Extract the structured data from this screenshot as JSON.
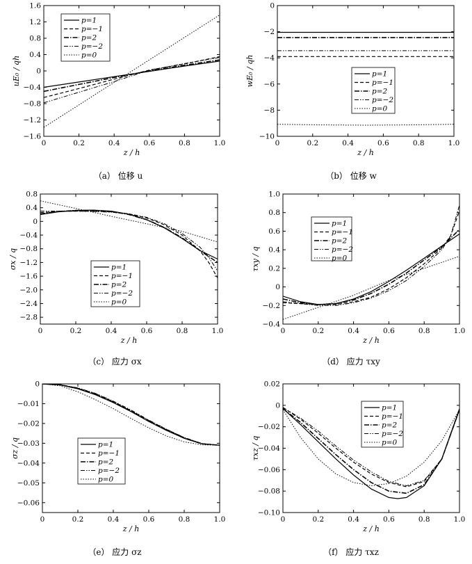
{
  "line_styles": {
    "p=1": {
      "dash": "",
      "width": 1.2
    },
    "p=-1": {
      "dash": "5,3",
      "width": 1.2
    },
    "p=2": {
      "dash": "7,2,1.5,2",
      "width": 1.6
    },
    "p=-2": {
      "dash": "6,2,1.5,2,1.5,2",
      "width": 1.0
    },
    "p=0": {
      "dash": "1.5,2",
      "width": 1.0
    }
  },
  "chart_data": [
    {
      "id": "a",
      "type": "line",
      "caption": "（a） 位移 u",
      "xlabel": "z / h",
      "ylabel": "uE₀ / qh",
      "xlim": [
        0,
        1.0
      ],
      "ylim": [
        -1.6,
        1.6
      ],
      "xticks": [
        "0",
        "0.2",
        "0.4",
        "0.6",
        "0.8",
        "1.0"
      ],
      "yticks": [
        "1.6",
        "1.2",
        "0.8",
        "0.4",
        "0",
        "-0.4",
        "-0.8",
        "-1.2",
        "-1.6"
      ],
      "legend_position": "top-left",
      "legend": [
        "p=1",
        "p=−1",
        "p=2",
        "p=−2",
        "p=0"
      ],
      "series": [
        {
          "name": "p=1",
          "x": [
            0,
            0.2,
            0.4,
            0.6,
            0.8,
            1.0
          ],
          "y": [
            -0.4,
            -0.27,
            -0.14,
            -0.01,
            0.12,
            0.24
          ]
        },
        {
          "name": "p=-1",
          "x": [
            0,
            0.2,
            0.4,
            0.6,
            0.8,
            1.0
          ],
          "y": [
            -0.65,
            -0.43,
            -0.2,
            0.02,
            0.17,
            0.35
          ]
        },
        {
          "name": "p=2",
          "x": [
            0,
            0.2,
            0.4,
            0.6,
            0.8,
            1.0
          ],
          "y": [
            -0.5,
            -0.33,
            -0.16,
            0.0,
            0.14,
            0.27
          ]
        },
        {
          "name": "p=-2",
          "x": [
            0,
            0.2,
            0.4,
            0.6,
            0.8,
            1.0
          ],
          "y": [
            -0.78,
            -0.52,
            -0.26,
            0.02,
            0.18,
            0.33
          ]
        },
        {
          "name": "p=0",
          "x": [
            0,
            0.2,
            0.4,
            0.6,
            0.8,
            1.0
          ],
          "y": [
            -1.38,
            -0.83,
            -0.28,
            0.27,
            0.82,
            1.37
          ]
        }
      ]
    },
    {
      "id": "b",
      "type": "line",
      "caption": "（b） 位移 w",
      "xlabel": "z / h",
      "ylabel": "wE₀ / qh",
      "xlim": [
        0,
        1.0
      ],
      "ylim": [
        -10,
        0
      ],
      "xticks": [
        "0",
        "0.2",
        "0.4",
        "0.6",
        "0.8",
        "1.0"
      ],
      "yticks": [
        "0",
        "-2",
        "-4",
        "-6",
        "-8",
        "-10"
      ],
      "legend_position": "center-right",
      "legend": [
        "p=1",
        "p=−1",
        "p=2",
        "p=−2",
        "p=0"
      ],
      "series": [
        {
          "name": "p=1",
          "x": [
            0,
            0.5,
            1.0
          ],
          "y": [
            -2.05,
            -2.05,
            -2.05
          ]
        },
        {
          "name": "p=-1",
          "x": [
            0,
            0.5,
            1.0
          ],
          "y": [
            -3.9,
            -3.9,
            -3.9
          ]
        },
        {
          "name": "p=2",
          "x": [
            0,
            0.5,
            1.0
          ],
          "y": [
            -2.45,
            -2.45,
            -2.45
          ]
        },
        {
          "name": "p=-2",
          "x": [
            0,
            0.5,
            1.0
          ],
          "y": [
            -3.45,
            -3.45,
            -3.45
          ]
        },
        {
          "name": "p=0",
          "x": [
            0,
            0.25,
            0.5,
            0.75,
            1.0
          ],
          "y": [
            -9.08,
            -9.13,
            -9.15,
            -9.13,
            -9.08
          ]
        }
      ]
    },
    {
      "id": "c",
      "type": "line",
      "caption": "（c） 应力 σx",
      "xlabel": "z / h",
      "ylabel": "σx / q",
      "xlim": [
        0,
        1.0
      ],
      "ylim": [
        -3.0,
        0.8
      ],
      "xticks": [
        "0",
        "0.2",
        "0.4",
        "0.6",
        "0.8",
        "1.0"
      ],
      "yticks": [
        "0.8",
        "0.4",
        "0",
        "-0.4",
        "-0.8",
        "-1.2",
        "-1.6",
        "-2.0",
        "-2.4",
        "-2.8"
      ],
      "legend_position": "bottom-center",
      "legend": [
        "p=1",
        "p=−1",
        "p=2",
        "p=−2",
        "p=0"
      ],
      "series": [
        {
          "name": "p=1",
          "x": [
            0,
            0.1,
            0.2,
            0.3,
            0.4,
            0.5,
            0.6,
            0.7,
            0.8,
            0.9,
            1.0
          ],
          "y": [
            0.2,
            0.28,
            0.32,
            0.33,
            0.3,
            0.21,
            0.05,
            -0.19,
            -0.5,
            -0.85,
            -1.1
          ]
        },
        {
          "name": "p=-1",
          "x": [
            0,
            0.1,
            0.2,
            0.3,
            0.4,
            0.5,
            0.6,
            0.7,
            0.8,
            0.9,
            0.95,
            1.0
          ],
          "y": [
            0.26,
            0.29,
            0.3,
            0.3,
            0.28,
            0.22,
            0.1,
            -0.1,
            -0.4,
            -0.85,
            -1.2,
            -1.65
          ]
        },
        {
          "name": "p=2",
          "x": [
            0,
            0.1,
            0.2,
            0.3,
            0.4,
            0.5,
            0.6,
            0.7,
            0.8,
            0.9,
            1.0
          ],
          "y": [
            0.22,
            0.29,
            0.32,
            0.32,
            0.29,
            0.2,
            0.05,
            -0.18,
            -0.48,
            -0.85,
            -1.2
          ]
        },
        {
          "name": "p=-2",
          "x": [
            0,
            0.1,
            0.2,
            0.3,
            0.4,
            0.5,
            0.6,
            0.7,
            0.8,
            0.9,
            0.95,
            1.0
          ],
          "y": [
            0.3,
            0.3,
            0.3,
            0.29,
            0.27,
            0.22,
            0.12,
            -0.07,
            -0.35,
            -0.75,
            -1.05,
            -1.45
          ]
        },
        {
          "name": "p=0",
          "x": [
            0,
            0.2,
            0.4,
            0.6,
            0.8,
            1.0
          ],
          "y": [
            0.6,
            0.38,
            0.15,
            -0.07,
            -0.29,
            -0.6
          ]
        }
      ]
    },
    {
      "id": "d",
      "type": "line",
      "caption": "（d） 应力 τxy",
      "xlabel": "z / h",
      "ylabel": "τxy / q",
      "xlim": [
        0,
        1.0
      ],
      "ylim": [
        -0.4,
        1.0
      ],
      "xticks": [
        "0",
        "0.2",
        "0.4",
        "0.6",
        "0.8",
        "1.0"
      ],
      "yticks": [
        "1.0",
        "0.8",
        "0.6",
        "0.4",
        "0.2",
        "0",
        "-0.2",
        "-0.4"
      ],
      "legend_position": "top-left",
      "legend": [
        "p=1",
        "p=−1",
        "p=2",
        "p=−2",
        "p=0"
      ],
      "series": [
        {
          "name": "p=1",
          "x": [
            0,
            0.1,
            0.2,
            0.3,
            0.4,
            0.5,
            0.6,
            0.7,
            0.8,
            0.9,
            1.0
          ],
          "y": [
            -0.1,
            -0.16,
            -0.19,
            -0.18,
            -0.13,
            -0.05,
            0.06,
            0.18,
            0.31,
            0.44,
            0.57
          ]
        },
        {
          "name": "p=-1",
          "x": [
            0,
            0.1,
            0.2,
            0.3,
            0.4,
            0.5,
            0.6,
            0.7,
            0.8,
            0.9,
            0.95,
            1.0
          ],
          "y": [
            -0.17,
            -0.18,
            -0.19,
            -0.19,
            -0.16,
            -0.11,
            -0.02,
            0.1,
            0.25,
            0.42,
            0.55,
            0.82
          ]
        },
        {
          "name": "p=2",
          "x": [
            0,
            0.1,
            0.2,
            0.3,
            0.4,
            0.5,
            0.6,
            0.7,
            0.8,
            0.9,
            1.0
          ],
          "y": [
            -0.13,
            -0.17,
            -0.19,
            -0.18,
            -0.14,
            -0.07,
            0.03,
            0.15,
            0.29,
            0.43,
            0.62
          ]
        },
        {
          "name": "p=-2",
          "x": [
            0,
            0.1,
            0.2,
            0.3,
            0.4,
            0.5,
            0.6,
            0.7,
            0.8,
            0.9,
            0.95,
            1.0
          ],
          "y": [
            -0.16,
            -0.18,
            -0.2,
            -0.2,
            -0.17,
            -0.12,
            -0.04,
            0.07,
            0.22,
            0.4,
            0.55,
            0.88
          ]
        },
        {
          "name": "p=0",
          "x": [
            0,
            0.2,
            0.4,
            0.6,
            0.8,
            1.0
          ],
          "y": [
            -0.35,
            -0.22,
            -0.09,
            0.07,
            0.2,
            0.33
          ]
        }
      ]
    },
    {
      "id": "e",
      "type": "line",
      "caption": "（e） 应力 σz",
      "xlabel": "z / h",
      "ylabel": "σz / q",
      "xlim": [
        0,
        1.0
      ],
      "ylim": [
        -0.065,
        0.0
      ],
      "xticks": [
        "0",
        "0.2",
        "0.4",
        "0.6",
        "0.8",
        "1.0"
      ],
      "yticks": [
        "0",
        "-0.01",
        "-0.02",
        "-0.03",
        "-0.04",
        "-0.05",
        "-0.06"
      ],
      "legend_position": "center",
      "legend": [
        "p=1",
        "p=−1",
        "p=2",
        "p=−2",
        "p=0"
      ],
      "series": [
        {
          "name": "p=1",
          "x": [
            0,
            0.1,
            0.2,
            0.3,
            0.4,
            0.5,
            0.6,
            0.7,
            0.8,
            0.9,
            1.0
          ],
          "y": [
            0.0,
            -0.0005,
            -0.0025,
            -0.0055,
            -0.0095,
            -0.014,
            -0.019,
            -0.0235,
            -0.0275,
            -0.0303,
            -0.031
          ]
        },
        {
          "name": "p=-1",
          "x": [
            0,
            0.1,
            0.2,
            0.3,
            0.4,
            0.5,
            0.6,
            0.7,
            0.8,
            0.9,
            1.0
          ],
          "y": [
            0.0,
            -0.0004,
            -0.0022,
            -0.005,
            -0.009,
            -0.0135,
            -0.0185,
            -0.023,
            -0.0272,
            -0.0302,
            -0.031
          ]
        },
        {
          "name": "p=2",
          "x": [
            0,
            0.1,
            0.2,
            0.3,
            0.4,
            0.5,
            0.6,
            0.7,
            0.8,
            0.9,
            1.0
          ],
          "y": [
            0.0,
            -0.0005,
            -0.0024,
            -0.0053,
            -0.0093,
            -0.0138,
            -0.0188,
            -0.0233,
            -0.0274,
            -0.0303,
            -0.031
          ]
        },
        {
          "name": "p=-2",
          "x": [
            0,
            0.1,
            0.2,
            0.3,
            0.4,
            0.5,
            0.6,
            0.7,
            0.8,
            0.9,
            1.0
          ],
          "y": [
            0.0,
            -0.0004,
            -0.002,
            -0.0048,
            -0.0087,
            -0.0132,
            -0.0183,
            -0.0229,
            -0.0271,
            -0.0301,
            -0.031
          ]
        },
        {
          "name": "p=0",
          "x": [
            0,
            0.1,
            0.2,
            0.3,
            0.4,
            0.5,
            0.6,
            0.7,
            0.8,
            0.9,
            1.0
          ],
          "y": [
            0.0,
            -0.001,
            -0.004,
            -0.008,
            -0.0125,
            -0.0175,
            -0.0222,
            -0.0263,
            -0.0293,
            -0.0308,
            -0.031
          ]
        }
      ]
    },
    {
      "id": "f",
      "type": "line",
      "caption": "（f） 应力 τxz",
      "xlabel": "z / h",
      "ylabel": "τxz / q",
      "xlim": [
        0,
        1.0
      ],
      "ylim": [
        -0.1,
        0.02
      ],
      "xticks": [
        "0",
        "0.2",
        "0.4",
        "0.6",
        "0.8",
        "1.0"
      ],
      "yticks": [
        "0.02",
        "0",
        "-0.02",
        "-0.04",
        "-0.06",
        "-0.08",
        "-0.10"
      ],
      "legend_position": "top-center",
      "legend": [
        "p=1",
        "p=−1",
        "p=2",
        "p=−2",
        "p=0"
      ],
      "series": [
        {
          "name": "p=1",
          "x": [
            0,
            0.1,
            0.2,
            0.3,
            0.4,
            0.5,
            0.6,
            0.65,
            0.7,
            0.8,
            0.9,
            1.0
          ],
          "y": [
            -0.003,
            -0.018,
            -0.034,
            -0.05,
            -0.065,
            -0.078,
            -0.086,
            -0.087,
            -0.086,
            -0.075,
            -0.05,
            -0.004
          ]
        },
        {
          "name": "p=-1",
          "x": [
            0,
            0.1,
            0.2,
            0.3,
            0.4,
            0.5,
            0.6,
            0.7,
            0.8,
            0.9,
            1.0
          ],
          "y": [
            -0.002,
            -0.013,
            -0.026,
            -0.04,
            -0.053,
            -0.064,
            -0.072,
            -0.076,
            -0.071,
            -0.05,
            -0.003
          ]
        },
        {
          "name": "p=2",
          "x": [
            0,
            0.1,
            0.2,
            0.3,
            0.4,
            0.5,
            0.6,
            0.7,
            0.8,
            0.9,
            1.0
          ],
          "y": [
            -0.003,
            -0.016,
            -0.031,
            -0.046,
            -0.06,
            -0.072,
            -0.08,
            -0.082,
            -0.074,
            -0.05,
            -0.004
          ]
        },
        {
          "name": "p=-2",
          "x": [
            0,
            0.1,
            0.2,
            0.3,
            0.4,
            0.5,
            0.6,
            0.7,
            0.8,
            0.9,
            1.0
          ],
          "y": [
            -0.002,
            -0.012,
            -0.024,
            -0.038,
            -0.051,
            -0.062,
            -0.071,
            -0.075,
            -0.07,
            -0.05,
            -0.003
          ]
        },
        {
          "name": "p=0",
          "x": [
            0,
            0.1,
            0.2,
            0.3,
            0.4,
            0.5,
            0.6,
            0.7,
            0.8,
            0.9,
            1.0
          ],
          "y": [
            -0.004,
            -0.03,
            -0.05,
            -0.064,
            -0.072,
            -0.075,
            -0.073,
            -0.066,
            -0.053,
            -0.033,
            -0.004
          ]
        }
      ]
    }
  ]
}
